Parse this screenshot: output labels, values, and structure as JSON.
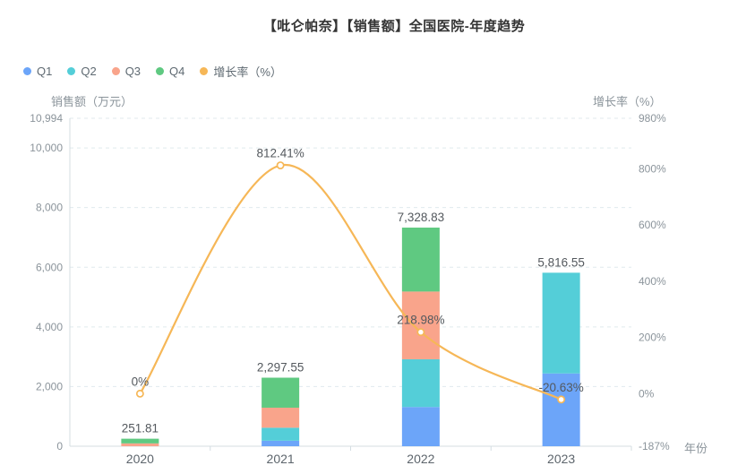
{
  "title": "【吡仑帕奈】【销售额】全国医院-年度趋势",
  "legend": {
    "items": [
      {
        "label": "Q1",
        "color": "#6ca5f9"
      },
      {
        "label": "Q2",
        "color": "#54ced8"
      },
      {
        "label": "Q3",
        "color": "#f9a48b"
      },
      {
        "label": "Q4",
        "color": "#5fc981"
      },
      {
        "label": "增长率（%）",
        "color": "#f6b757"
      }
    ]
  },
  "chart_data": {
    "type": "bar",
    "subtype": "stacked-bars-with-growth-line",
    "categories": [
      "2020",
      "2021",
      "2022",
      "2023"
    ],
    "series": [
      {
        "name": "Q1",
        "type": "bar",
        "stack": true,
        "color": "#6ca5f9",
        "values": [
          0,
          185,
          1315,
          2440
        ]
      },
      {
        "name": "Q2",
        "type": "bar",
        "stack": true,
        "color": "#54ced8",
        "values": [
          0,
          435,
          1600,
          3376.55
        ]
      },
      {
        "name": "Q3",
        "type": "bar",
        "stack": true,
        "color": "#f9a48b",
        "values": [
          95,
          672,
          2270,
          0
        ]
      },
      {
        "name": "Q4",
        "type": "bar",
        "stack": true,
        "color": "#5fc981",
        "values": [
          156.81,
          1005.55,
          2143.83,
          0
        ]
      },
      {
        "name": "增长率（%）",
        "type": "line",
        "axis": "right",
        "color": "#f6b757",
        "values": [
          0,
          812.41,
          218.98,
          -20.63
        ]
      }
    ],
    "bar_totals": [
      251.81,
      2297.55,
      7328.83,
      5816.55
    ],
    "bar_total_labels": [
      "251.81",
      "2,297.55",
      "7,328.83",
      "5,816.55"
    ],
    "growth_labels": [
      "0%",
      "812.41%",
      "218.98%",
      "-20.63%"
    ],
    "left_axis": {
      "title": "销售额（万元）",
      "min": 0,
      "max": 10994,
      "ticks": [
        0,
        2000,
        4000,
        6000,
        8000,
        10000,
        10994
      ],
      "tick_labels": [
        "0",
        "2,000",
        "4,000",
        "6,000",
        "8,000",
        "10,000",
        "10,994"
      ]
    },
    "right_axis": {
      "title": "增长率（%）",
      "min": -187,
      "max": 980,
      "ticks": [
        -187,
        0,
        200,
        400,
        600,
        800,
        980
      ],
      "tick_labels": [
        "-187%",
        "0%",
        "200%",
        "400%",
        "600%",
        "800%",
        "980%"
      ]
    },
    "x_axis": {
      "title": "年份"
    },
    "grid": "horizontal dashed lines at left-axis ticks",
    "legend_position": "top-left",
    "style": {
      "grid_color": "#e0eaee",
      "axis_line_color": "#d4dde2",
      "marker_fill": "#ffffff"
    }
  }
}
